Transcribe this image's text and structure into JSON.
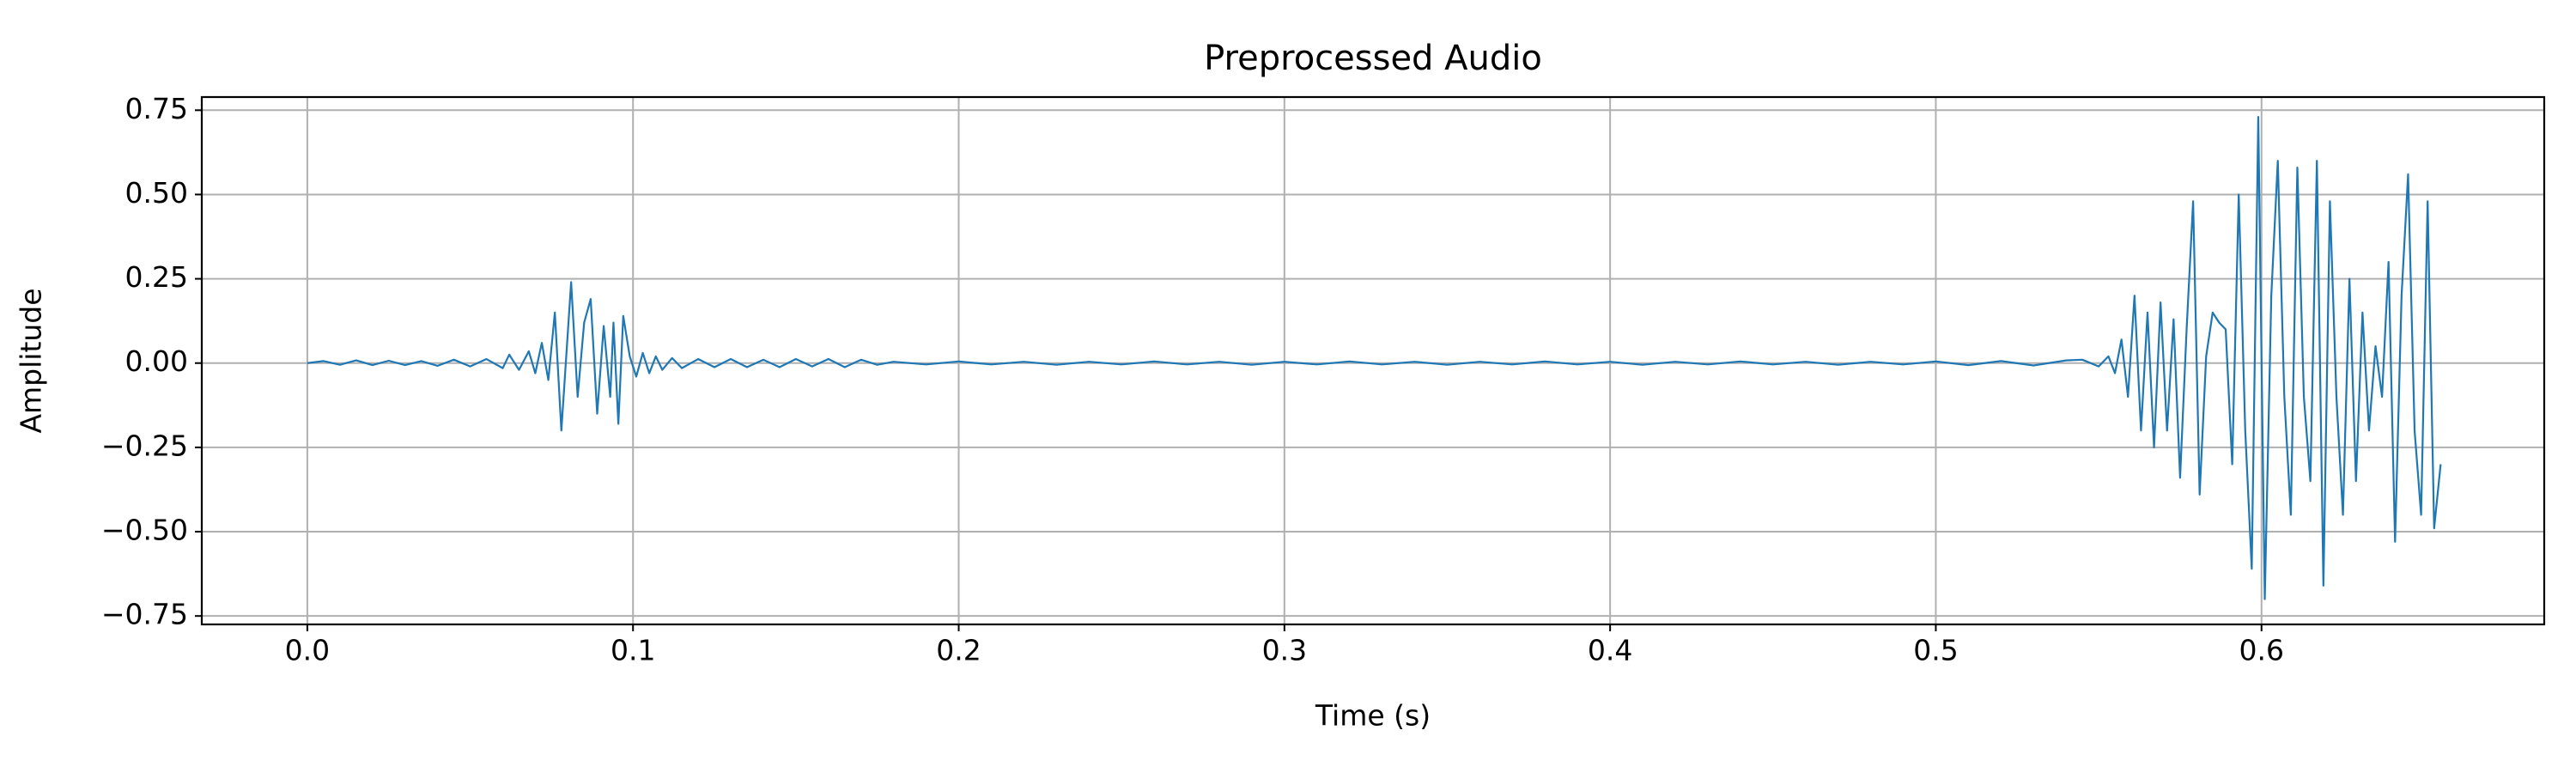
{
  "chart_data": {
    "type": "line",
    "title": "Preprocessed Audio",
    "x_label": "Time (s)",
    "y_label": "Amplitude",
    "color": "#1f77b4",
    "grid": true,
    "xlim": [
      -0.0324,
      0.6868
    ],
    "ylim": [
      -0.775,
      0.789
    ],
    "xticks": [
      {
        "value": 0,
        "label": "0.0"
      },
      0.1,
      0.2,
      0.3,
      0.4,
      0.5,
      0.6
    ],
    "yticks": [
      {
        "value": -0.75,
        "label": "−0.75"
      },
      {
        "value": -0.5,
        "label": "−0.50"
      },
      {
        "value": -0.25,
        "label": "−0.25"
      },
      {
        "value": 0,
        "label": "0.00"
      },
      0.25,
      {
        "value": 0.5,
        "label": "0.50"
      },
      0.75
    ],
    "x": [
      0.0,
      0.005,
      0.01,
      0.015,
      0.02,
      0.025,
      0.03,
      0.035,
      0.04,
      0.045,
      0.05,
      0.055,
      0.06,
      0.062,
      0.065,
      0.068,
      0.07,
      0.072,
      0.074,
      0.076,
      0.078,
      0.081,
      0.083,
      0.085,
      0.087,
      0.089,
      0.091,
      0.093,
      0.094,
      0.0955,
      0.097,
      0.099,
      0.101,
      0.103,
      0.105,
      0.107,
      0.109,
      0.112,
      0.115,
      0.12,
      0.125,
      0.13,
      0.135,
      0.14,
      0.145,
      0.15,
      0.155,
      0.16,
      0.165,
      0.17,
      0.175,
      0.18,
      0.19,
      0.2,
      0.21,
      0.22,
      0.23,
      0.24,
      0.25,
      0.26,
      0.27,
      0.28,
      0.29,
      0.3,
      0.31,
      0.32,
      0.33,
      0.34,
      0.35,
      0.36,
      0.37,
      0.38,
      0.39,
      0.4,
      0.41,
      0.42,
      0.43,
      0.44,
      0.45,
      0.46,
      0.47,
      0.48,
      0.49,
      0.5,
      0.51,
      0.52,
      0.53,
      0.54,
      0.545,
      0.55,
      0.553,
      0.555,
      0.557,
      0.559,
      0.561,
      0.563,
      0.565,
      0.567,
      0.569,
      0.571,
      0.573,
      0.575,
      0.577,
      0.579,
      0.581,
      0.583,
      0.585,
      0.587,
      0.589,
      0.591,
      0.593,
      0.595,
      0.597,
      0.599,
      0.601,
      0.603,
      0.605,
      0.607,
      0.609,
      0.611,
      0.613,
      0.615,
      0.617,
      0.619,
      0.621,
      0.623,
      0.625,
      0.627,
      0.629,
      0.631,
      0.633,
      0.635,
      0.637,
      0.639,
      0.641,
      0.643,
      0.645,
      0.647,
      0.649,
      0.651,
      0.653,
      0.655
    ],
    "values": [
      0,
      0.006,
      -0.005,
      0.008,
      -0.006,
      0.007,
      -0.006,
      0.006,
      -0.008,
      0.01,
      -0.01,
      0.012,
      -0.015,
      0.025,
      -0.02,
      0.035,
      -0.03,
      0.06,
      -0.05,
      0.15,
      -0.2,
      0.24,
      -0.1,
      0.12,
      0.19,
      -0.15,
      0.11,
      -0.1,
      0.12,
      -0.18,
      0.14,
      0.02,
      -0.04,
      0.03,
      -0.03,
      0.02,
      -0.02,
      0.015,
      -0.015,
      0.012,
      -0.012,
      0.012,
      -0.012,
      0.01,
      -0.012,
      0.012,
      -0.01,
      0.012,
      -0.012,
      0.01,
      -0.005,
      0.004,
      -0.004,
      0.005,
      -0.004,
      0.004,
      -0.005,
      0.004,
      -0.004,
      0.005,
      -0.004,
      0.004,
      -0.005,
      0.004,
      -0.004,
      0.005,
      -0.004,
      0.004,
      -0.005,
      0.004,
      -0.004,
      0.005,
      -0.004,
      0.004,
      -0.005,
      0.004,
      -0.004,
      0.005,
      -0.004,
      0.004,
      -0.005,
      0.004,
      -0.004,
      0.005,
      -0.006,
      0.006,
      -0.007,
      0.008,
      0.01,
      -0.01,
      0.02,
      -0.03,
      0.07,
      -0.1,
      0.2,
      -0.2,
      0.15,
      -0.25,
      0.18,
      -0.2,
      0.13,
      -0.34,
      0.1,
      0.48,
      -0.39,
      0.02,
      0.15,
      0.12,
      0.1,
      -0.3,
      0.5,
      -0.2,
      -0.61,
      0.73,
      -0.7,
      0.2,
      0.6,
      -0.1,
      -0.45,
      0.58,
      -0.1,
      -0.35,
      0.6,
      -0.66,
      0.48,
      -0.1,
      -0.45,
      0.25,
      -0.35,
      0.15,
      -0.2,
      0.05,
      -0.1,
      0.3,
      -0.53,
      0.2,
      0.56,
      -0.2,
      -0.45,
      0.48,
      -0.49,
      -0.3
    ]
  }
}
